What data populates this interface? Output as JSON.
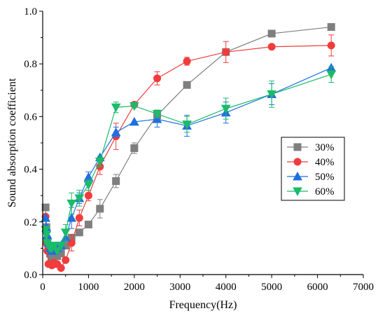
{
  "chart_data": {
    "type": "line",
    "xlabel": "Frequency(Hz)",
    "ylabel": "Sound absorption coefficient",
    "xlim": [
      0,
      7000
    ],
    "ylim": [
      0,
      1.0
    ],
    "xticks": [
      "0",
      "1000",
      "2000",
      "3000",
      "4000",
      "5000",
      "6000",
      "7000"
    ],
    "yticks": [
      "0.0",
      "0.2",
      "0.4",
      "0.6",
      "0.8",
      "1.0"
    ],
    "grid": false,
    "legend_position": "right",
    "x": [
      63,
      80,
      100,
      125,
      160,
      200,
      250,
      315,
      400,
      500,
      630,
      800,
      1000,
      1250,
      1600,
      2000,
      2500,
      3150,
      4000,
      5000,
      6300
    ],
    "series": [
      {
        "name": "30%",
        "color": "#7f7f7f",
        "marker": "square",
        "values": [
          0.255,
          0.18,
          0.13,
          0.11,
          0.08,
          0.06,
          0.04,
          0.07,
          0.08,
          0.11,
          0.14,
          0.16,
          0.19,
          0.25,
          0.355,
          0.48,
          0.605,
          0.72,
          0.845,
          0.915,
          0.94
        ],
        "errors": [
          0.01,
          0.01,
          0.01,
          0.01,
          0.01,
          0.01,
          0.01,
          0.01,
          0.01,
          0.01,
          0.01,
          0.01,
          0.01,
          0.035,
          0.025,
          0.02,
          0.015,
          0.01,
          0.01,
          0.005,
          0.005
        ]
      },
      {
        "name": "40%",
        "color": "#f03c3c",
        "marker": "circle",
        "values": [
          0.22,
          0.12,
          0.09,
          0.04,
          0.04,
          0.035,
          0.045,
          0.04,
          0.025,
          0.055,
          0.12,
          0.215,
          0.3,
          0.41,
          0.525,
          0.645,
          0.745,
          0.81,
          0.845,
          0.865,
          0.87
        ],
        "errors": [
          0.01,
          0.01,
          0.01,
          0.01,
          0.01,
          0.01,
          0.01,
          0.01,
          0.01,
          0.01,
          0.03,
          0.03,
          0.02,
          0.03,
          0.05,
          0.01,
          0.025,
          0.015,
          0.04,
          0.005,
          0.04
        ]
      },
      {
        "name": "50%",
        "color": "#1f6fe0",
        "marker": "triangle-up",
        "values": [
          0.215,
          0.18,
          0.15,
          0.12,
          0.1,
          0.09,
          0.09,
          0.1,
          0.11,
          0.14,
          0.215,
          0.29,
          0.37,
          0.445,
          0.54,
          0.58,
          0.59,
          0.565,
          0.615,
          0.685,
          0.785
        ],
        "errors": [
          0.01,
          0.01,
          0.01,
          0.01,
          0.01,
          0.01,
          0.01,
          0.01,
          0.01,
          0.01,
          0.04,
          0.02,
          0.02,
          0.01,
          0.02,
          0.01,
          0.03,
          0.04,
          0.04,
          0.04,
          0.01
        ]
      },
      {
        "name": "60%",
        "color": "#1bbb6a",
        "marker": "triangle-down",
        "values": [
          0.17,
          0.15,
          0.12,
          0.11,
          0.1,
          0.1,
          0.11,
          0.09,
          0.11,
          0.16,
          0.27,
          0.29,
          0.34,
          0.43,
          0.635,
          0.64,
          0.61,
          0.57,
          0.63,
          0.685,
          0.76
        ],
        "errors": [
          0.01,
          0.01,
          0.01,
          0.01,
          0.01,
          0.01,
          0.01,
          0.01,
          0.01,
          0.03,
          0.04,
          0.03,
          0.02,
          0.02,
          0.02,
          0.01,
          0.015,
          0.03,
          0.04,
          0.05,
          0.03
        ]
      }
    ]
  }
}
